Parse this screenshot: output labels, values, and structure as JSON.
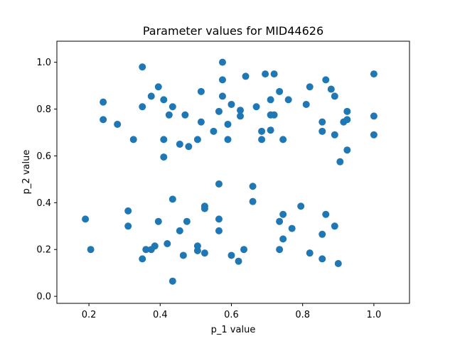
{
  "chart_data": {
    "type": "scatter",
    "title": "Parameter values for MID44626",
    "xlabel": "p_1 value",
    "ylabel": "p_2 value",
    "xlim": [
      0.11,
      1.1
    ],
    "ylim": [
      -0.03,
      1.09
    ],
    "xticks": [
      0.2,
      0.4,
      0.6,
      0.8,
      1.0
    ],
    "xtick_labels": [
      "0.2",
      "0.4",
      "0.6",
      "0.8",
      "1.0"
    ],
    "yticks": [
      0.0,
      0.2,
      0.4,
      0.6,
      0.8,
      1.0
    ],
    "ytick_labels": [
      "0.0",
      "0.2",
      "0.4",
      "0.6",
      "0.8",
      "1.0"
    ],
    "grid": false,
    "marker_color": "#1f77b4",
    "points": [
      [
        0.24,
        0.83
      ],
      [
        0.24,
        0.755
      ],
      [
        0.28,
        0.735
      ],
      [
        0.325,
        0.67
      ],
      [
        0.35,
        0.98
      ],
      [
        0.35,
        0.81
      ],
      [
        0.375,
        0.855
      ],
      [
        0.395,
        0.895
      ],
      [
        0.41,
        0.84
      ],
      [
        0.41,
        0.67
      ],
      [
        0.41,
        0.595
      ],
      [
        0.425,
        0.775
      ],
      [
        0.435,
        0.81
      ],
      [
        0.455,
        0.65
      ],
      [
        0.47,
        0.775
      ],
      [
        0.48,
        0.64
      ],
      [
        0.505,
        0.67
      ],
      [
        0.515,
        0.745
      ],
      [
        0.515,
        0.875
      ],
      [
        0.55,
        0.705
      ],
      [
        0.565,
        0.79
      ],
      [
        0.575,
        1.0
      ],
      [
        0.575,
        0.925
      ],
      [
        0.575,
        0.855
      ],
      [
        0.59,
        0.735
      ],
      [
        0.59,
        0.67
      ],
      [
        0.6,
        0.82
      ],
      [
        0.625,
        0.77
      ],
      [
        0.625,
        0.795
      ],
      [
        0.64,
        0.94
      ],
      [
        0.67,
        0.81
      ],
      [
        0.685,
        0.67
      ],
      [
        0.685,
        0.705
      ],
      [
        0.695,
        0.95
      ],
      [
        0.71,
        0.84
      ],
      [
        0.71,
        0.775
      ],
      [
        0.71,
        0.71
      ],
      [
        0.72,
        0.95
      ],
      [
        0.72,
        0.775
      ],
      [
        0.735,
        0.875
      ],
      [
        0.745,
        0.67
      ],
      [
        0.76,
        0.84
      ],
      [
        0.81,
        0.82
      ],
      [
        0.82,
        0.895
      ],
      [
        0.855,
        0.745
      ],
      [
        0.855,
        0.705
      ],
      [
        0.865,
        0.925
      ],
      [
        0.88,
        0.885
      ],
      [
        0.89,
        0.855
      ],
      [
        0.89,
        0.69
      ],
      [
        0.905,
        0.575
      ],
      [
        0.915,
        0.745
      ],
      [
        0.925,
        0.79
      ],
      [
        0.925,
        0.755
      ],
      [
        0.925,
        0.625
      ],
      [
        1.0,
        0.95
      ],
      [
        1.0,
        0.77
      ],
      [
        1.0,
        0.69
      ],
      [
        0.19,
        0.33
      ],
      [
        0.205,
        0.2
      ],
      [
        0.31,
        0.365
      ],
      [
        0.31,
        0.3
      ],
      [
        0.35,
        0.16
      ],
      [
        0.36,
        0.2
      ],
      [
        0.375,
        0.2
      ],
      [
        0.385,
        0.215
      ],
      [
        0.395,
        0.32
      ],
      [
        0.42,
        0.225
      ],
      [
        0.435,
        0.415
      ],
      [
        0.435,
        0.065
      ],
      [
        0.455,
        0.28
      ],
      [
        0.465,
        0.175
      ],
      [
        0.475,
        0.32
      ],
      [
        0.505,
        0.215
      ],
      [
        0.505,
        0.195
      ],
      [
        0.525,
        0.385
      ],
      [
        0.525,
        0.375
      ],
      [
        0.525,
        0.185
      ],
      [
        0.565,
        0.48
      ],
      [
        0.565,
        0.33
      ],
      [
        0.565,
        0.28
      ],
      [
        0.6,
        0.175
      ],
      [
        0.62,
        0.15
      ],
      [
        0.635,
        0.2
      ],
      [
        0.66,
        0.47
      ],
      [
        0.66,
        0.405
      ],
      [
        0.735,
        0.32
      ],
      [
        0.735,
        0.2
      ],
      [
        0.745,
        0.35
      ],
      [
        0.745,
        0.245
      ],
      [
        0.77,
        0.29
      ],
      [
        0.795,
        0.385
      ],
      [
        0.82,
        0.185
      ],
      [
        0.855,
        0.265
      ],
      [
        0.855,
        0.16
      ],
      [
        0.865,
        0.35
      ],
      [
        0.89,
        0.3
      ],
      [
        0.9,
        0.14
      ]
    ]
  }
}
